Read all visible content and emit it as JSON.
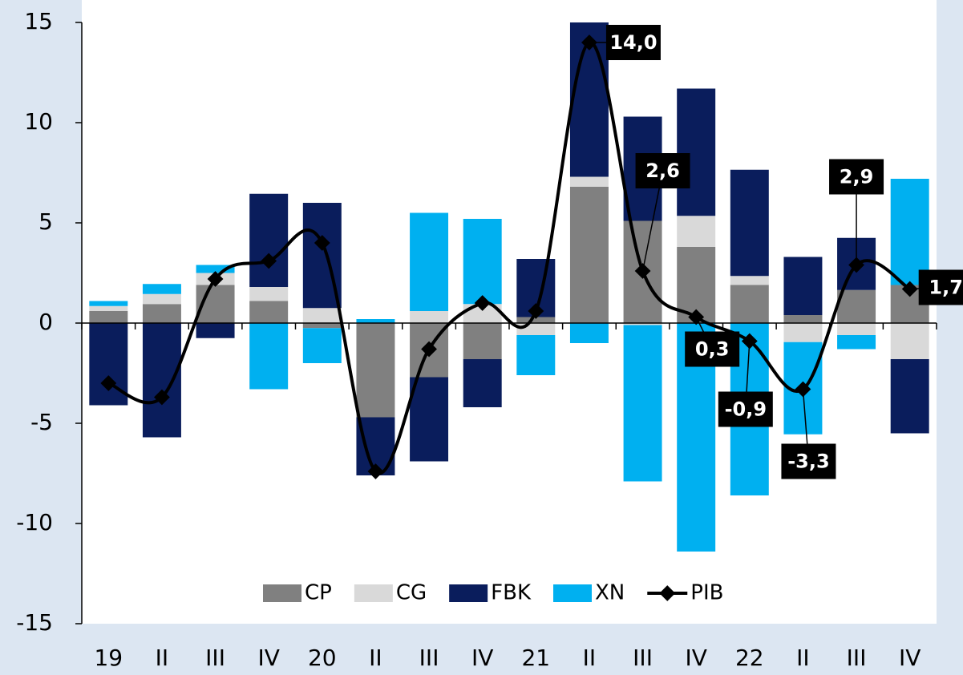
{
  "chart_data": {
    "type": "bar+line",
    "categories": [
      "19",
      "II",
      "III",
      "IV",
      "20",
      "II",
      "III",
      "IV",
      "21",
      "II",
      "III",
      "IV",
      "22",
      "II",
      "III",
      "IV"
    ],
    "series": [
      {
        "name": "CP",
        "type": "bar",
        "color": "#808080",
        "values": [
          0.6,
          0.95,
          1.9,
          1.1,
          -0.25,
          -4.7,
          -2.7,
          -1.8,
          0.3,
          6.8,
          5.1,
          3.8,
          1.9,
          0.4,
          1.65,
          1.9
        ]
      },
      {
        "name": "CG",
        "type": "bar",
        "color": "#d9d9d9",
        "values": [
          0.25,
          0.5,
          0.6,
          0.7,
          0.75,
          0,
          0.6,
          0.95,
          -0.6,
          0.5,
          -0.1,
          1.55,
          0.45,
          -0.95,
          -0.6,
          -1.8
        ]
      },
      {
        "name": "FBK",
        "type": "bar",
        "color": "#0a1d5c",
        "values": [
          -4.1,
          -5.7,
          -0.75,
          4.65,
          5.25,
          -2.9,
          -4.2,
          -2.4,
          2.9,
          7.7,
          5.2,
          6.35,
          5.3,
          2.9,
          2.6,
          -3.7
        ]
      },
      {
        "name": "XN",
        "type": "bar",
        "color": "#00b0f0",
        "values": [
          0.25,
          0.5,
          0.4,
          -3.3,
          -1.75,
          0.2,
          4.9,
          4.25,
          -2.0,
          -1.0,
          -7.8,
          -11.4,
          -8.6,
          -4.6,
          -0.7,
          5.3
        ]
      },
      {
        "name": "PIB",
        "type": "line",
        "color": "#000000",
        "values": [
          -3.0,
          -3.7,
          2.2,
          3.1,
          4.0,
          -7.4,
          -1.3,
          1.0,
          0.6,
          14.0,
          2.6,
          0.3,
          -0.9,
          -3.3,
          2.9,
          1.7
        ],
        "value_labels": [
          null,
          null,
          null,
          null,
          null,
          null,
          null,
          null,
          null,
          "14,0",
          "2,6",
          "0,3",
          "-0,9",
          "-3,3",
          "2,9",
          "1,7"
        ]
      }
    ],
    "ylim": [
      -15,
      15
    ],
    "yticks": [
      15,
      10,
      5,
      0,
      -5,
      -10,
      -15
    ],
    "legend": "bottom"
  }
}
